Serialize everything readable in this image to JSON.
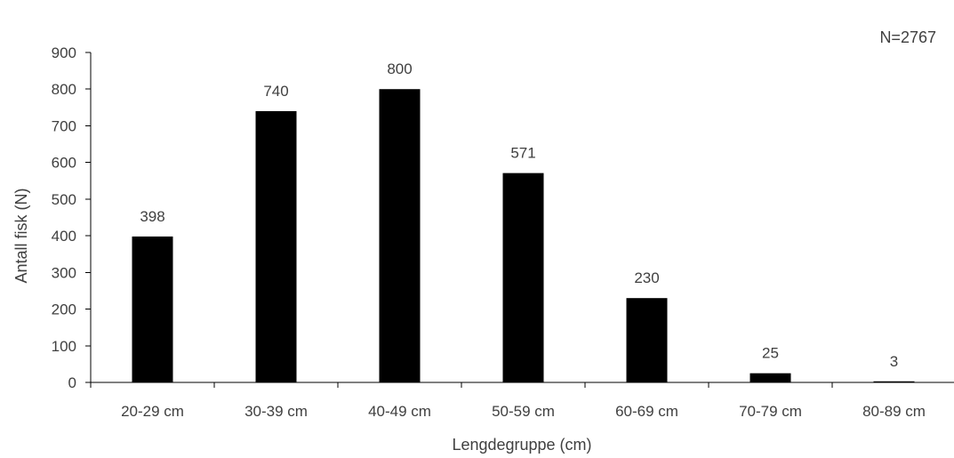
{
  "chart_data": {
    "type": "bar",
    "categories": [
      "20-29 cm",
      "30-39 cm",
      "40-49 cm",
      "50-59 cm",
      "60-69 cm",
      "70-79 cm",
      "80-89 cm"
    ],
    "values": [
      398,
      740,
      800,
      571,
      230,
      25,
      3
    ],
    "xlabel": "Lengdegruppe (cm)",
    "ylabel": "Antall fisk (N)",
    "ylim": [
      0,
      900
    ],
    "yticks": [
      0,
      100,
      200,
      300,
      400,
      500,
      600,
      700,
      800,
      900
    ],
    "annotation": "N=2767",
    "data_labels": true,
    "grid": false,
    "bar_color": "#000000"
  }
}
